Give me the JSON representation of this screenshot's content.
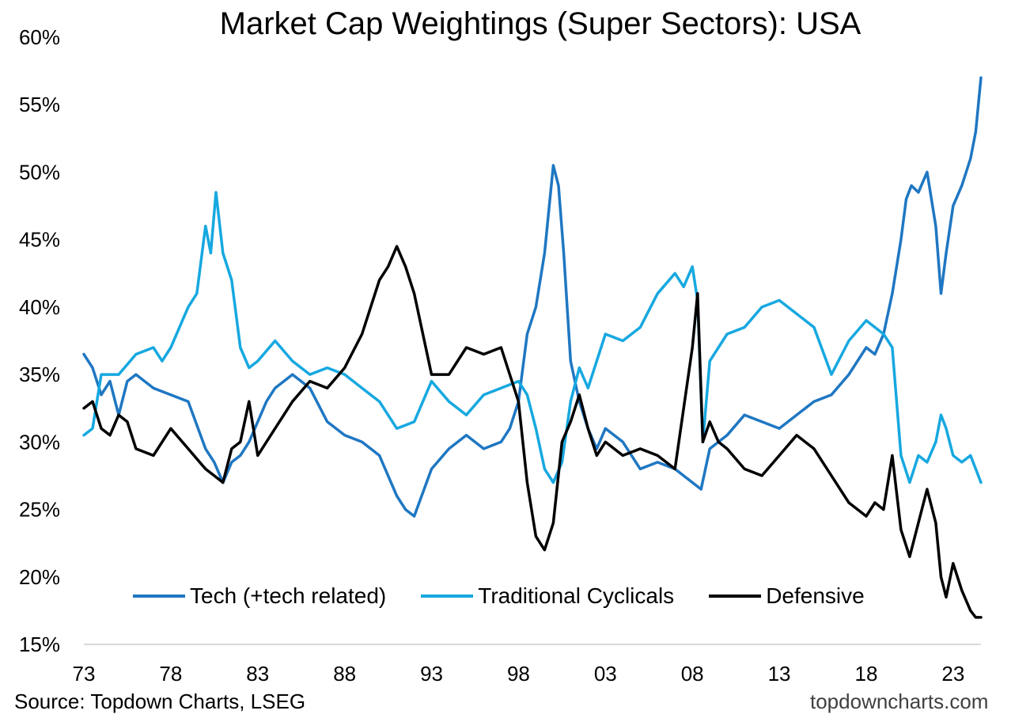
{
  "chart_data": {
    "type": "line",
    "title": "Market Cap Weightings (Super Sectors): USA",
    "ylim": [
      15,
      60
    ],
    "y_ticks": [
      "15%",
      "20%",
      "25%",
      "30%",
      "35%",
      "40%",
      "45%",
      "50%",
      "55%",
      "60%"
    ],
    "y_tick_values": [
      15,
      20,
      25,
      30,
      35,
      40,
      45,
      50,
      55,
      60
    ],
    "x_ticks": [
      "73",
      "78",
      "83",
      "88",
      "93",
      "98",
      "03",
      "08",
      "13",
      "18",
      "23"
    ],
    "x_tick_values": [
      1973,
      1978,
      1983,
      1988,
      1993,
      1998,
      2003,
      2008,
      2013,
      2018,
      2023
    ],
    "xlim": [
      1973,
      2024.6
    ],
    "grid": false,
    "legend_position": "bottom",
    "series": [
      {
        "name": "Tech (+tech related)",
        "color": "#1f77c2",
        "x": [
          1973.0,
          1973.5,
          1974.0,
          1974.5,
          1975.0,
          1975.5,
          1976.0,
          1977.0,
          1978.0,
          1979.0,
          1980.0,
          1980.5,
          1981.0,
          1981.5,
          1982.0,
          1982.5,
          1983.0,
          1983.5,
          1984.0,
          1985.0,
          1986.0,
          1987.0,
          1988.0,
          1989.0,
          1990.0,
          1990.5,
          1991.0,
          1991.5,
          1992.0,
          1993.0,
          1994.0,
          1995.0,
          1996.0,
          1997.0,
          1997.5,
          1998.0,
          1998.5,
          1999.0,
          1999.5,
          2000.0,
          2000.3,
          2000.6,
          2001.0,
          2001.5,
          2002.0,
          2002.5,
          2003.0,
          2004.0,
          2005.0,
          2006.0,
          2007.0,
          2008.0,
          2008.5,
          2009.0,
          2009.5,
          2010.0,
          2011.0,
          2012.0,
          2013.0,
          2014.0,
          2015.0,
          2016.0,
          2017.0,
          2018.0,
          2018.5,
          2019.0,
          2019.5,
          2020.0,
          2020.3,
          2020.6,
          2021.0,
          2021.5,
          2022.0,
          2022.3,
          2022.6,
          2023.0,
          2023.5,
          2024.0,
          2024.3,
          2024.6
        ],
        "values": [
          36.5,
          35.5,
          33.5,
          34.5,
          32.0,
          34.5,
          35.0,
          34.0,
          33.5,
          33.0,
          29.5,
          28.5,
          27.0,
          28.5,
          29.0,
          30.0,
          31.5,
          33.0,
          34.0,
          35.0,
          34.0,
          31.5,
          30.5,
          30.0,
          29.0,
          27.5,
          26.0,
          25.0,
          24.5,
          28.0,
          29.5,
          30.5,
          29.5,
          30.0,
          31.0,
          33.0,
          38.0,
          40.0,
          44.0,
          50.5,
          49.0,
          44.0,
          36.0,
          33.0,
          31.0,
          29.5,
          31.0,
          30.0,
          28.0,
          28.5,
          28.0,
          27.0,
          26.5,
          29.5,
          30.0,
          30.5,
          32.0,
          31.5,
          31.0,
          32.0,
          33.0,
          33.5,
          35.0,
          37.0,
          36.5,
          38.0,
          41.0,
          45.0,
          48.0,
          49.0,
          48.5,
          50.0,
          46.0,
          41.0,
          44.0,
          47.5,
          49.0,
          51.0,
          53.0,
          57.0
        ]
      },
      {
        "name": "Traditional Cyclicals",
        "color": "#16a8e0",
        "x": [
          1973.0,
          1973.5,
          1974.0,
          1975.0,
          1976.0,
          1977.0,
          1977.5,
          1978.0,
          1979.0,
          1979.5,
          1980.0,
          1980.3,
          1980.6,
          1981.0,
          1981.5,
          1982.0,
          1982.5,
          1983.0,
          1984.0,
          1985.0,
          1986.0,
          1987.0,
          1988.0,
          1989.0,
          1990.0,
          1991.0,
          1992.0,
          1993.0,
          1994.0,
          1995.0,
          1996.0,
          1997.0,
          1998.0,
          1998.5,
          1999.0,
          1999.5,
          2000.0,
          2000.5,
          2001.0,
          2001.5,
          2002.0,
          2003.0,
          2004.0,
          2005.0,
          2006.0,
          2007.0,
          2007.5,
          2008.0,
          2008.3,
          2008.6,
          2009.0,
          2010.0,
          2011.0,
          2012.0,
          2013.0,
          2014.0,
          2015.0,
          2016.0,
          2017.0,
          2018.0,
          2019.0,
          2019.5,
          2020.0,
          2020.5,
          2021.0,
          2021.5,
          2022.0,
          2022.3,
          2022.6,
          2023.0,
          2023.5,
          2024.0,
          2024.3,
          2024.6
        ],
        "values": [
          30.5,
          31.0,
          35.0,
          35.0,
          36.5,
          37.0,
          36.0,
          37.0,
          40.0,
          41.0,
          46.0,
          44.0,
          48.5,
          44.0,
          42.0,
          37.0,
          35.5,
          36.0,
          37.5,
          36.0,
          35.0,
          35.5,
          35.0,
          34.0,
          33.0,
          31.0,
          31.5,
          34.5,
          33.0,
          32.0,
          33.5,
          34.0,
          34.5,
          33.5,
          31.0,
          28.0,
          27.0,
          28.5,
          33.0,
          35.5,
          34.0,
          38.0,
          37.5,
          38.5,
          41.0,
          42.5,
          41.5,
          43.0,
          40.5,
          30.0,
          36.0,
          38.0,
          38.5,
          40.0,
          40.5,
          39.5,
          38.5,
          35.0,
          37.5,
          39.0,
          38.0,
          37.0,
          29.0,
          27.0,
          29.0,
          28.5,
          30.0,
          32.0,
          31.0,
          29.0,
          28.5,
          29.0,
          28.0,
          27.0
        ]
      },
      {
        "name": "Defensive",
        "color": "#000000",
        "x": [
          1973.0,
          1973.5,
          1974.0,
          1974.5,
          1975.0,
          1975.5,
          1976.0,
          1977.0,
          1978.0,
          1979.0,
          1980.0,
          1980.5,
          1981.0,
          1981.5,
          1982.0,
          1982.5,
          1983.0,
          1984.0,
          1985.0,
          1986.0,
          1987.0,
          1988.0,
          1989.0,
          1990.0,
          1990.5,
          1991.0,
          1991.5,
          1992.0,
          1993.0,
          1994.0,
          1995.0,
          1996.0,
          1997.0,
          1997.5,
          1998.0,
          1998.5,
          1999.0,
          1999.5,
          2000.0,
          2000.5,
          2001.0,
          2001.5,
          2002.0,
          2002.5,
          2003.0,
          2004.0,
          2005.0,
          2006.0,
          2007.0,
          2008.0,
          2008.3,
          2008.6,
          2009.0,
          2009.5,
          2010.0,
          2011.0,
          2012.0,
          2013.0,
          2014.0,
          2015.0,
          2016.0,
          2017.0,
          2018.0,
          2018.5,
          2019.0,
          2019.5,
          2020.0,
          2020.5,
          2021.0,
          2021.5,
          2022.0,
          2022.3,
          2022.6,
          2023.0,
          2023.5,
          2024.0,
          2024.3,
          2024.6
        ],
        "values": [
          32.5,
          33.0,
          31.0,
          30.5,
          32.0,
          31.5,
          29.5,
          29.0,
          31.0,
          29.5,
          28.0,
          27.5,
          27.0,
          29.5,
          30.0,
          33.0,
          29.0,
          31.0,
          33.0,
          34.5,
          34.0,
          35.5,
          38.0,
          42.0,
          43.0,
          44.5,
          43.0,
          41.0,
          35.0,
          35.0,
          37.0,
          36.5,
          37.0,
          35.0,
          33.0,
          27.0,
          23.0,
          22.0,
          24.0,
          30.0,
          31.5,
          33.5,
          31.0,
          29.0,
          30.0,
          29.0,
          29.5,
          29.0,
          28.0,
          37.0,
          41.0,
          30.0,
          31.5,
          30.0,
          29.5,
          28.0,
          27.5,
          29.0,
          30.5,
          29.5,
          27.5,
          25.5,
          24.5,
          25.5,
          25.0,
          29.0,
          23.5,
          21.5,
          24.0,
          26.5,
          24.0,
          20.0,
          18.5,
          21.0,
          19.0,
          17.5,
          17.0,
          17.0
        ]
      }
    ]
  },
  "source_text": "Source: Topdown Charts, LSEG",
  "credit_text": "topdowncharts.com"
}
